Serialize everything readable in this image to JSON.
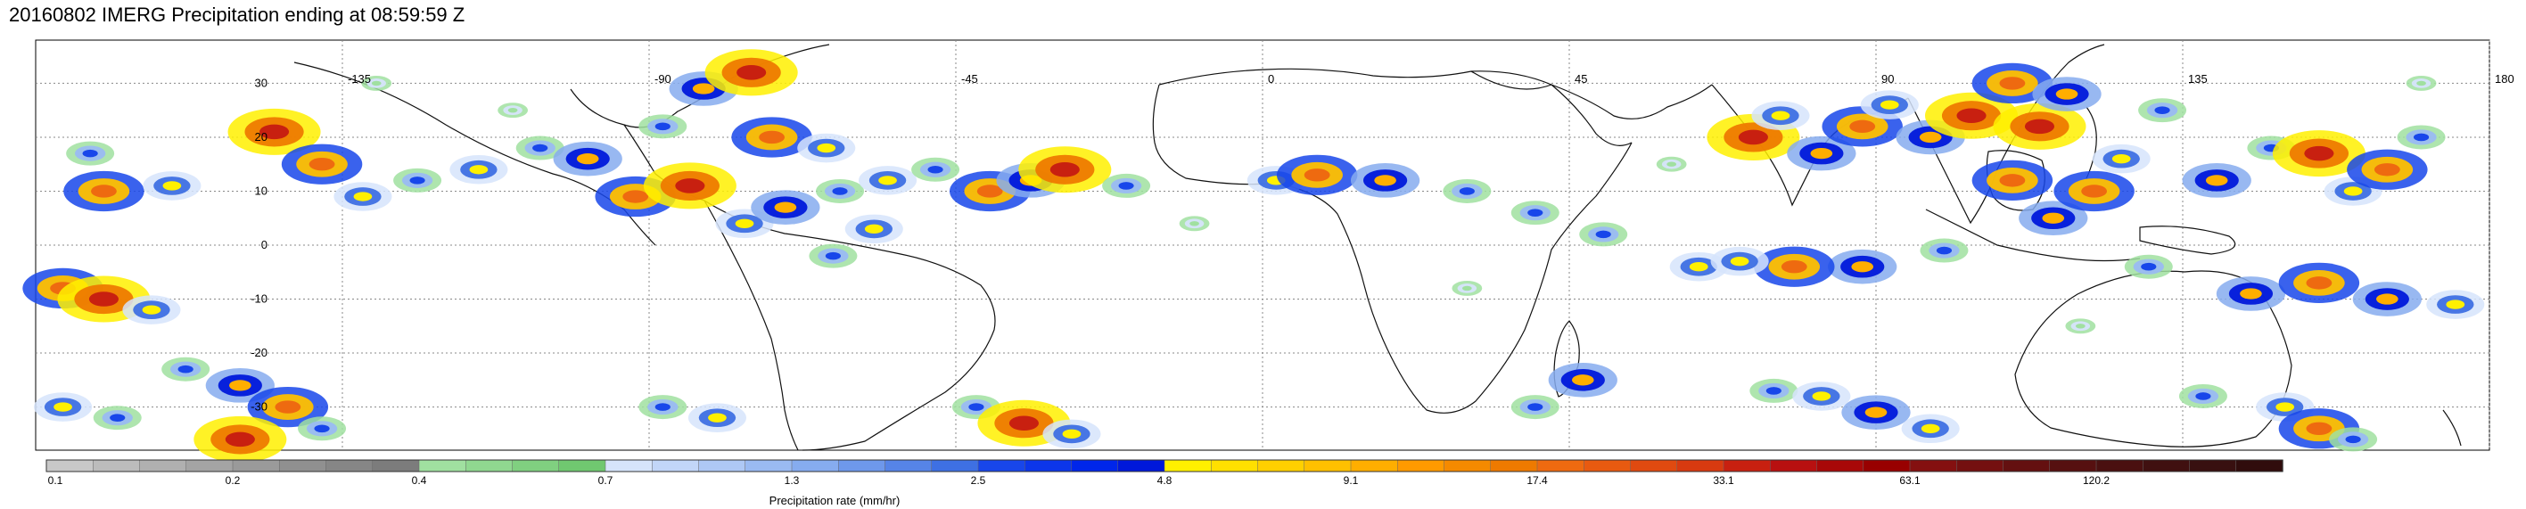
{
  "title": "20160802 IMERG Precipitation ending at 08:59:59 Z",
  "map": {
    "projection": "equirectangular",
    "lon_range": [
      -180,
      180
    ],
    "lat_range": [
      -38,
      38
    ],
    "lon_labels": [
      "-135",
      "-90",
      "-45",
      "0",
      "45",
      "90",
      "135",
      "180"
    ],
    "lat_labels": [
      "30",
      "20",
      "10",
      "0",
      "-10",
      "-20",
      "-30"
    ],
    "gridlines": true,
    "background_color": "#ffffff",
    "coastline_color": "#000000"
  },
  "colorbar": {
    "label": "Precipitation rate (mm/hr)",
    "tick_labels": [
      "0.1",
      "0.2",
      "0.4",
      "0.7",
      "1.3",
      "2.5",
      "4.8",
      "9.1",
      "17.4",
      "33.1",
      "63.1",
      "120.2"
    ],
    "segments_per_interval": 4,
    "colors": [
      "#c8c8c8",
      "#bcbcbc",
      "#b0b0b0",
      "#a4a4a4",
      "#9a9a9a",
      "#909090",
      "#868686",
      "#7c7c7c",
      "#a0e0a0",
      "#90d890",
      "#80d080",
      "#70c870",
      "#d6e4fb",
      "#c2d6f8",
      "#aec8f5",
      "#9abaf2",
      "#86acef",
      "#6e98eb",
      "#5684e7",
      "#3e70e3",
      "#1846ea",
      "#0c36ea",
      "#0026ea",
      "#0018da",
      "#fff000",
      "#ffe000",
      "#ffd000",
      "#ffc000",
      "#ffae00",
      "#ff9a00",
      "#f58a00",
      "#ee7a00",
      "#ee6a10",
      "#e85a10",
      "#e04a10",
      "#d83a10",
      "#c82010",
      "#b81010",
      "#a80808",
      "#980000",
      "#841010",
      "#741010",
      "#641010",
      "#561010",
      "#4a1010",
      "#401010",
      "#381010",
      "#300c0c"
    ]
  },
  "precip_cells": [
    {
      "lon": -172,
      "lat": 17,
      "mm_hr": 2.5
    },
    {
      "lon": -170,
      "lat": 10,
      "mm_hr": 17.4
    },
    {
      "lon": -160,
      "lat": 11,
      "mm_hr": 4.8
    },
    {
      "lon": -145,
      "lat": 21,
      "mm_hr": 33.1
    },
    {
      "lon": -138,
      "lat": 15,
      "mm_hr": 17.4
    },
    {
      "lon": -132,
      "lat": 9,
      "mm_hr": 4.8
    },
    {
      "lon": -124,
      "lat": 12,
      "mm_hr": 2.5
    },
    {
      "lon": -115,
      "lat": 14,
      "mm_hr": 4.8
    },
    {
      "lon": -106,
      "lat": 18,
      "mm_hr": 2.5
    },
    {
      "lon": -99,
      "lat": 16,
      "mm_hr": 9.1
    },
    {
      "lon": -92,
      "lat": 9,
      "mm_hr": 17.4
    },
    {
      "lon": -84,
      "lat": 11,
      "mm_hr": 33.1
    },
    {
      "lon": -76,
      "lat": 4,
      "mm_hr": 4.8
    },
    {
      "lon": -70,
      "lat": 7,
      "mm_hr": 9.1
    },
    {
      "lon": -62,
      "lat": 10,
      "mm_hr": 2.5
    },
    {
      "lon": -55,
      "lat": 12,
      "mm_hr": 4.8
    },
    {
      "lon": -48,
      "lat": 14,
      "mm_hr": 2.5
    },
    {
      "lon": -40,
      "lat": 10,
      "mm_hr": 17.4
    },
    {
      "lon": -34,
      "lat": 12,
      "mm_hr": 9.1
    },
    {
      "lon": -29,
      "lat": 14,
      "mm_hr": 33.1
    },
    {
      "lon": -20,
      "lat": 11,
      "mm_hr": 2.5
    },
    {
      "lon": -82,
      "lat": 29,
      "mm_hr": 9.1
    },
    {
      "lon": -72,
      "lat": 20,
      "mm_hr": 17.4
    },
    {
      "lon": -64,
      "lat": 18,
      "mm_hr": 4.8
    },
    {
      "lon": -75,
      "lat": 32,
      "mm_hr": 33.1
    },
    {
      "lon": -88,
      "lat": 22,
      "mm_hr": 2.5
    },
    {
      "lon": -63,
      "lat": -2,
      "mm_hr": 2.5
    },
    {
      "lon": -57,
      "lat": 3,
      "mm_hr": 4.8
    },
    {
      "lon": 2,
      "lat": 12,
      "mm_hr": 4.8
    },
    {
      "lon": 8,
      "lat": 13,
      "mm_hr": 17.4
    },
    {
      "lon": 18,
      "lat": 12,
      "mm_hr": 9.1
    },
    {
      "lon": 30,
      "lat": 10,
      "mm_hr": 2.5
    },
    {
      "lon": 40,
      "lat": 6,
      "mm_hr": 2.5
    },
    {
      "lon": 50,
      "lat": 2,
      "mm_hr": 2.5
    },
    {
      "lon": 64,
      "lat": -4,
      "mm_hr": 4.8
    },
    {
      "lon": 72,
      "lat": 20,
      "mm_hr": 33.1
    },
    {
      "lon": 76,
      "lat": 24,
      "mm_hr": 4.8
    },
    {
      "lon": 82,
      "lat": 17,
      "mm_hr": 9.1
    },
    {
      "lon": 88,
      "lat": 22,
      "mm_hr": 17.4
    },
    {
      "lon": 92,
      "lat": 26,
      "mm_hr": 4.8
    },
    {
      "lon": 98,
      "lat": 20,
      "mm_hr": 9.1
    },
    {
      "lon": 104,
      "lat": 24,
      "mm_hr": 33.1
    },
    {
      "lon": 110,
      "lat": 30,
      "mm_hr": 17.4
    },
    {
      "lon": 114,
      "lat": 22,
      "mm_hr": 33.1
    },
    {
      "lon": 118,
      "lat": 28,
      "mm_hr": 9.1
    },
    {
      "lon": 110,
      "lat": 12,
      "mm_hr": 17.4
    },
    {
      "lon": 116,
      "lat": 5,
      "mm_hr": 9.1
    },
    {
      "lon": 122,
      "lat": 10,
      "mm_hr": 17.4
    },
    {
      "lon": 126,
      "lat": 16,
      "mm_hr": 4.8
    },
    {
      "lon": 132,
      "lat": 25,
      "mm_hr": 2.5
    },
    {
      "lon": 140,
      "lat": 12,
      "mm_hr": 9.1
    },
    {
      "lon": 148,
      "lat": 18,
      "mm_hr": 2.5
    },
    {
      "lon": 155,
      "lat": 17,
      "mm_hr": 33.1
    },
    {
      "lon": 160,
      "lat": 10,
      "mm_hr": 4.8
    },
    {
      "lon": 165,
      "lat": 14,
      "mm_hr": 17.4
    },
    {
      "lon": 170,
      "lat": 20,
      "mm_hr": 2.5
    },
    {
      "lon": 100,
      "lat": -1,
      "mm_hr": 2.5
    },
    {
      "lon": 88,
      "lat": -4,
      "mm_hr": 9.1
    },
    {
      "lon": 78,
      "lat": -4,
      "mm_hr": 17.4
    },
    {
      "lon": 70,
      "lat": -3,
      "mm_hr": 4.8
    },
    {
      "lon": 130,
      "lat": -4,
      "mm_hr": 2.5
    },
    {
      "lon": 145,
      "lat": -9,
      "mm_hr": 9.1
    },
    {
      "lon": 155,
      "lat": -7,
      "mm_hr": 17.4
    },
    {
      "lon": 165,
      "lat": -10,
      "mm_hr": 9.1
    },
    {
      "lon": 175,
      "lat": -11,
      "mm_hr": 4.8
    },
    {
      "lon": -176,
      "lat": -8,
      "mm_hr": 17.4
    },
    {
      "lon": -170,
      "lat": -10,
      "mm_hr": 33.1
    },
    {
      "lon": -163,
      "lat": -12,
      "mm_hr": 4.8
    },
    {
      "lon": -176,
      "lat": -30,
      "mm_hr": 4.8
    },
    {
      "lon": -168,
      "lat": -32,
      "mm_hr": 2.5
    },
    {
      "lon": -158,
      "lat": -23,
      "mm_hr": 2.5
    },
    {
      "lon": -150,
      "lat": -26,
      "mm_hr": 9.1
    },
    {
      "lon": -143,
      "lat": -30,
      "mm_hr": 17.4
    },
    {
      "lon": -138,
      "lat": -34,
      "mm_hr": 2.5
    },
    {
      "lon": -150,
      "lat": -36,
      "mm_hr": 33.1
    },
    {
      "lon": -88,
      "lat": -30,
      "mm_hr": 2.5
    },
    {
      "lon": -80,
      "lat": -32,
      "mm_hr": 4.8
    },
    {
      "lon": -42,
      "lat": -30,
      "mm_hr": 2.5
    },
    {
      "lon": -35,
      "lat": -33,
      "mm_hr": 33.1
    },
    {
      "lon": -28,
      "lat": -35,
      "mm_hr": 4.8
    },
    {
      "lon": 47,
      "lat": -25,
      "mm_hr": 9.1
    },
    {
      "lon": 40,
      "lat": -30,
      "mm_hr": 2.5
    },
    {
      "lon": 75,
      "lat": -27,
      "mm_hr": 2.5
    },
    {
      "lon": 82,
      "lat": -28,
      "mm_hr": 4.8
    },
    {
      "lon": 90,
      "lat": -31,
      "mm_hr": 9.1
    },
    {
      "lon": 98,
      "lat": -34,
      "mm_hr": 4.8
    },
    {
      "lon": 150,
      "lat": -30,
      "mm_hr": 4.8
    },
    {
      "lon": 155,
      "lat": -34,
      "mm_hr": 17.4
    },
    {
      "lon": 160,
      "lat": -36,
      "mm_hr": 2.5
    },
    {
      "lon": 138,
      "lat": -28,
      "mm_hr": 2.5
    },
    {
      "lon": -130,
      "lat": 30,
      "mm_hr": 0.4
    },
    {
      "lon": -110,
      "lat": 25,
      "mm_hr": 0.4
    },
    {
      "lon": -10,
      "lat": 4,
      "mm_hr": 0.4
    },
    {
      "lon": 30,
      "lat": -8,
      "mm_hr": 0.4
    },
    {
      "lon": 170,
      "lat": 30,
      "mm_hr": 0.4
    },
    {
      "lon": 60,
      "lat": 15,
      "mm_hr": 0.4
    },
    {
      "lon": 120,
      "lat": -15,
      "mm_hr": 0.4
    }
  ]
}
